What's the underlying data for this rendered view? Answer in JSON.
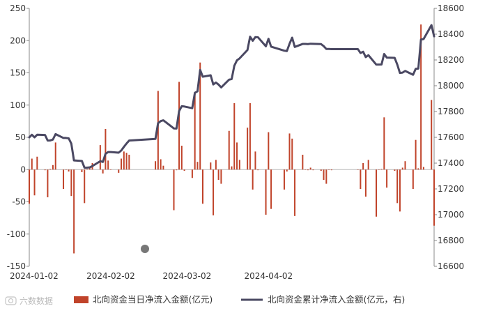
{
  "chart_data": {
    "type": "bar+line",
    "x_ticks": [
      "2024-01-02",
      "2024-02-02",
      "2024-03-02",
      "2024-04-02"
    ],
    "left_axis": {
      "ylim": [
        -150,
        250
      ],
      "ticks": [
        -150,
        -100,
        -50,
        0,
        50,
        100,
        150,
        200,
        250
      ]
    },
    "right_axis": {
      "ylim": [
        16600,
        18600
      ],
      "ticks": [
        16600,
        16800,
        17000,
        17200,
        17400,
        17600,
        17800,
        18000,
        18200,
        18400,
        18600
      ]
    },
    "series": [
      {
        "name": "北向资金当日净流入金额(亿元)",
        "type": "bar",
        "axis": "left",
        "color": "#c0432a",
        "points": [
          [
            "2024-01-02",
            -53
          ],
          [
            "2024-01-03",
            17
          ],
          [
            "2024-01-04",
            -40
          ],
          [
            "2024-01-05",
            20
          ],
          [
            "2024-01-08",
            -1
          ],
          [
            "2024-01-09",
            -43
          ],
          [
            "2024-01-10",
            1
          ],
          [
            "2024-01-11",
            7
          ],
          [
            "2024-01-12",
            42
          ],
          [
            "2024-01-15",
            -30
          ],
          [
            "2024-01-16",
            0
          ],
          [
            "2024-01-17",
            -3
          ],
          [
            "2024-01-18",
            -41
          ],
          [
            "2024-01-19",
            -130
          ],
          [
            "2024-01-22",
            -4
          ],
          [
            "2024-01-23",
            -52
          ],
          [
            "2024-01-24",
            0
          ],
          [
            "2024-01-25",
            2
          ],
          [
            "2024-01-26",
            10
          ],
          [
            "2024-01-29",
            38
          ],
          [
            "2024-01-30",
            -6
          ],
          [
            "2024-01-31",
            63
          ],
          [
            "2024-02-01",
            14
          ],
          [
            "2024-02-02",
            0
          ],
          [
            "2024-02-05",
            -5
          ],
          [
            "2024-02-06",
            17
          ],
          [
            "2024-02-07",
            28
          ],
          [
            "2024-02-08",
            26
          ],
          [
            "2024-02-09",
            23
          ],
          [
            "2024-02-19",
            13
          ],
          [
            "2024-02-20",
            122
          ],
          [
            "2024-02-21",
            16
          ],
          [
            "2024-02-22",
            6
          ],
          [
            "2024-02-26",
            -63
          ],
          [
            "2024-02-27",
            -1
          ],
          [
            "2024-02-28",
            136
          ],
          [
            "2024-02-29",
            37
          ],
          [
            "2024-03-01",
            -2
          ],
          [
            "2024-03-04",
            -13
          ],
          [
            "2024-03-05",
            119
          ],
          [
            "2024-03-06",
            12
          ],
          [
            "2024-03-07",
            166
          ],
          [
            "2024-03-08",
            -53
          ],
          [
            "2024-03-11",
            11
          ],
          [
            "2024-03-12",
            -71
          ],
          [
            "2024-03-13",
            15
          ],
          [
            "2024-03-14",
            -16
          ],
          [
            "2024-03-15",
            -22
          ],
          [
            "2024-03-18",
            60
          ],
          [
            "2024-03-19",
            5
          ],
          [
            "2024-03-20",
            103
          ],
          [
            "2024-03-21",
            42
          ],
          [
            "2024-03-22",
            15
          ],
          [
            "2024-03-25",
            65
          ],
          [
            "2024-03-26",
            103
          ],
          [
            "2024-03-27",
            -31
          ],
          [
            "2024-03-28",
            28
          ],
          [
            "2024-03-29",
            -1
          ],
          [
            "2024-04-01",
            -70
          ],
          [
            "2024-04-02",
            58
          ],
          [
            "2024-04-03",
            -61
          ],
          [
            "2024-04-08",
            -31
          ],
          [
            "2024-04-09",
            -3
          ],
          [
            "2024-04-10",
            56
          ],
          [
            "2024-04-11",
            48
          ],
          [
            "2024-04-12",
            -72
          ],
          [
            "2024-04-15",
            23
          ],
          [
            "2024-04-16",
            0
          ],
          [
            "2024-04-17",
            -1
          ],
          [
            "2024-04-18",
            3
          ],
          [
            "2024-04-19",
            -1
          ],
          [
            "2024-04-22",
            -2
          ],
          [
            "2024-04-23",
            -16
          ],
          [
            "2024-04-24",
            -22
          ],
          [
            "2024-04-25",
            0
          ],
          [
            "2024-04-26",
            -1
          ],
          [
            "2024-05-06",
            0
          ],
          [
            "2024-05-07",
            -30
          ],
          [
            "2024-05-08",
            10
          ],
          [
            "2024-05-09",
            -42
          ],
          [
            "2024-05-10",
            15
          ],
          [
            "2024-05-13",
            -73
          ],
          [
            "2024-05-14",
            0
          ],
          [
            "2024-05-15",
            1
          ],
          [
            "2024-05-16",
            81
          ],
          [
            "2024-05-17",
            -28
          ],
          [
            "2024-05-20",
            -2
          ],
          [
            "2024-05-21",
            -52
          ],
          [
            "2024-05-22",
            -65
          ],
          [
            "2024-05-23",
            3
          ],
          [
            "2024-05-24",
            13
          ],
          [
            "2024-05-27",
            -30
          ],
          [
            "2024-05-28",
            46
          ],
          [
            "2024-05-29",
            2
          ],
          [
            "2024-05-30",
            225
          ],
          [
            "2024-05-31",
            4
          ],
          [
            "2024-06-03",
            108
          ],
          [
            "2024-06-04",
            -87
          ]
        ]
      },
      {
        "name": "北向资金累计净流入金额(亿元，右)",
        "type": "line",
        "axis": "right",
        "color": "#4a4862",
        "points": [
          [
            "2024-01-02",
            17600
          ],
          [
            "2024-01-03",
            17620
          ],
          [
            "2024-01-04",
            17600
          ],
          [
            "2024-01-05",
            17620
          ],
          [
            "2024-01-08",
            17618
          ],
          [
            "2024-01-09",
            17575
          ],
          [
            "2024-01-10",
            17576
          ],
          [
            "2024-01-11",
            17583
          ],
          [
            "2024-01-12",
            17625
          ],
          [
            "2024-01-15",
            17595
          ],
          [
            "2024-01-16",
            17595
          ],
          [
            "2024-01-17",
            17592
          ],
          [
            "2024-01-18",
            17551
          ],
          [
            "2024-01-19",
            17421
          ],
          [
            "2024-01-22",
            17417
          ],
          [
            "2024-01-23",
            17365
          ],
          [
            "2024-01-24",
            17365
          ],
          [
            "2024-01-25",
            17367
          ],
          [
            "2024-01-26",
            17377
          ],
          [
            "2024-01-29",
            17415
          ],
          [
            "2024-01-30",
            17409
          ],
          [
            "2024-01-31",
            17472
          ],
          [
            "2024-02-01",
            17486
          ],
          [
            "2024-02-02",
            17486
          ],
          [
            "2024-02-05",
            17481
          ],
          [
            "2024-02-06",
            17498
          ],
          [
            "2024-02-07",
            17526
          ],
          [
            "2024-02-08",
            17552
          ],
          [
            "2024-02-09",
            17575
          ],
          [
            "2024-02-19",
            17588
          ],
          [
            "2024-02-20",
            17710
          ],
          [
            "2024-02-21",
            17726
          ],
          [
            "2024-02-22",
            17732
          ],
          [
            "2024-02-26",
            17669
          ],
          [
            "2024-02-27",
            17668
          ],
          [
            "2024-02-28",
            17804
          ],
          [
            "2024-02-29",
            17841
          ],
          [
            "2024-03-01",
            17839
          ],
          [
            "2024-03-04",
            17826
          ],
          [
            "2024-03-05",
            17945
          ],
          [
            "2024-03-06",
            17957
          ],
          [
            "2024-03-07",
            18123
          ],
          [
            "2024-03-08",
            18070
          ],
          [
            "2024-03-11",
            18081
          ],
          [
            "2024-03-12",
            18010
          ],
          [
            "2024-03-13",
            18025
          ],
          [
            "2024-03-14",
            18009
          ],
          [
            "2024-03-15",
            17987
          ],
          [
            "2024-03-18",
            18047
          ],
          [
            "2024-03-19",
            18052
          ],
          [
            "2024-03-20",
            18155
          ],
          [
            "2024-03-21",
            18197
          ],
          [
            "2024-03-22",
            18212
          ],
          [
            "2024-03-25",
            18277
          ],
          [
            "2024-03-26",
            18380
          ],
          [
            "2024-03-27",
            18349
          ],
          [
            "2024-03-28",
            18377
          ],
          [
            "2024-03-29",
            18376
          ],
          [
            "2024-04-01",
            18306
          ],
          [
            "2024-04-02",
            18364
          ],
          [
            "2024-04-03",
            18303
          ],
          [
            "2024-04-08",
            18272
          ],
          [
            "2024-04-09",
            18269
          ],
          [
            "2024-04-10",
            18325
          ],
          [
            "2024-04-11",
            18373
          ],
          [
            "2024-04-12",
            18301
          ],
          [
            "2024-04-15",
            18324
          ],
          [
            "2024-04-16",
            18324
          ],
          [
            "2024-04-17",
            18323
          ],
          [
            "2024-04-18",
            18326
          ],
          [
            "2024-04-19",
            18325
          ],
          [
            "2024-04-22",
            18323
          ],
          [
            "2024-04-23",
            18307
          ],
          [
            "2024-04-24",
            18285
          ],
          [
            "2024-04-25",
            18285
          ],
          [
            "2024-04-26",
            18284
          ],
          [
            "2024-05-06",
            18284
          ],
          [
            "2024-05-07",
            18254
          ],
          [
            "2024-05-08",
            18264
          ],
          [
            "2024-05-09",
            18222
          ],
          [
            "2024-05-10",
            18237
          ],
          [
            "2024-05-13",
            18164
          ],
          [
            "2024-05-14",
            18164
          ],
          [
            "2024-05-15",
            18165
          ],
          [
            "2024-05-16",
            18246
          ],
          [
            "2024-05-17",
            18218
          ],
          [
            "2024-05-20",
            18216
          ],
          [
            "2024-05-21",
            18164
          ],
          [
            "2024-05-22",
            18099
          ],
          [
            "2024-05-23",
            18102
          ],
          [
            "2024-05-24",
            18115
          ],
          [
            "2024-05-27",
            18085
          ],
          [
            "2024-05-28",
            18131
          ],
          [
            "2024-05-29",
            18133
          ],
          [
            "2024-05-30",
            18358
          ],
          [
            "2024-05-31",
            18362
          ],
          [
            "2024-06-03",
            18470
          ],
          [
            "2024-06-04",
            18383
          ]
        ]
      }
    ],
    "legend_position": "bottom",
    "grid": false
  },
  "watermark": {
    "text": "六数数据",
    "logo_icon": "camera-logo-icon"
  },
  "colors": {
    "bar": "#c0432a",
    "line": "#4a4862",
    "marker": "#777777",
    "axis": "#888888"
  }
}
